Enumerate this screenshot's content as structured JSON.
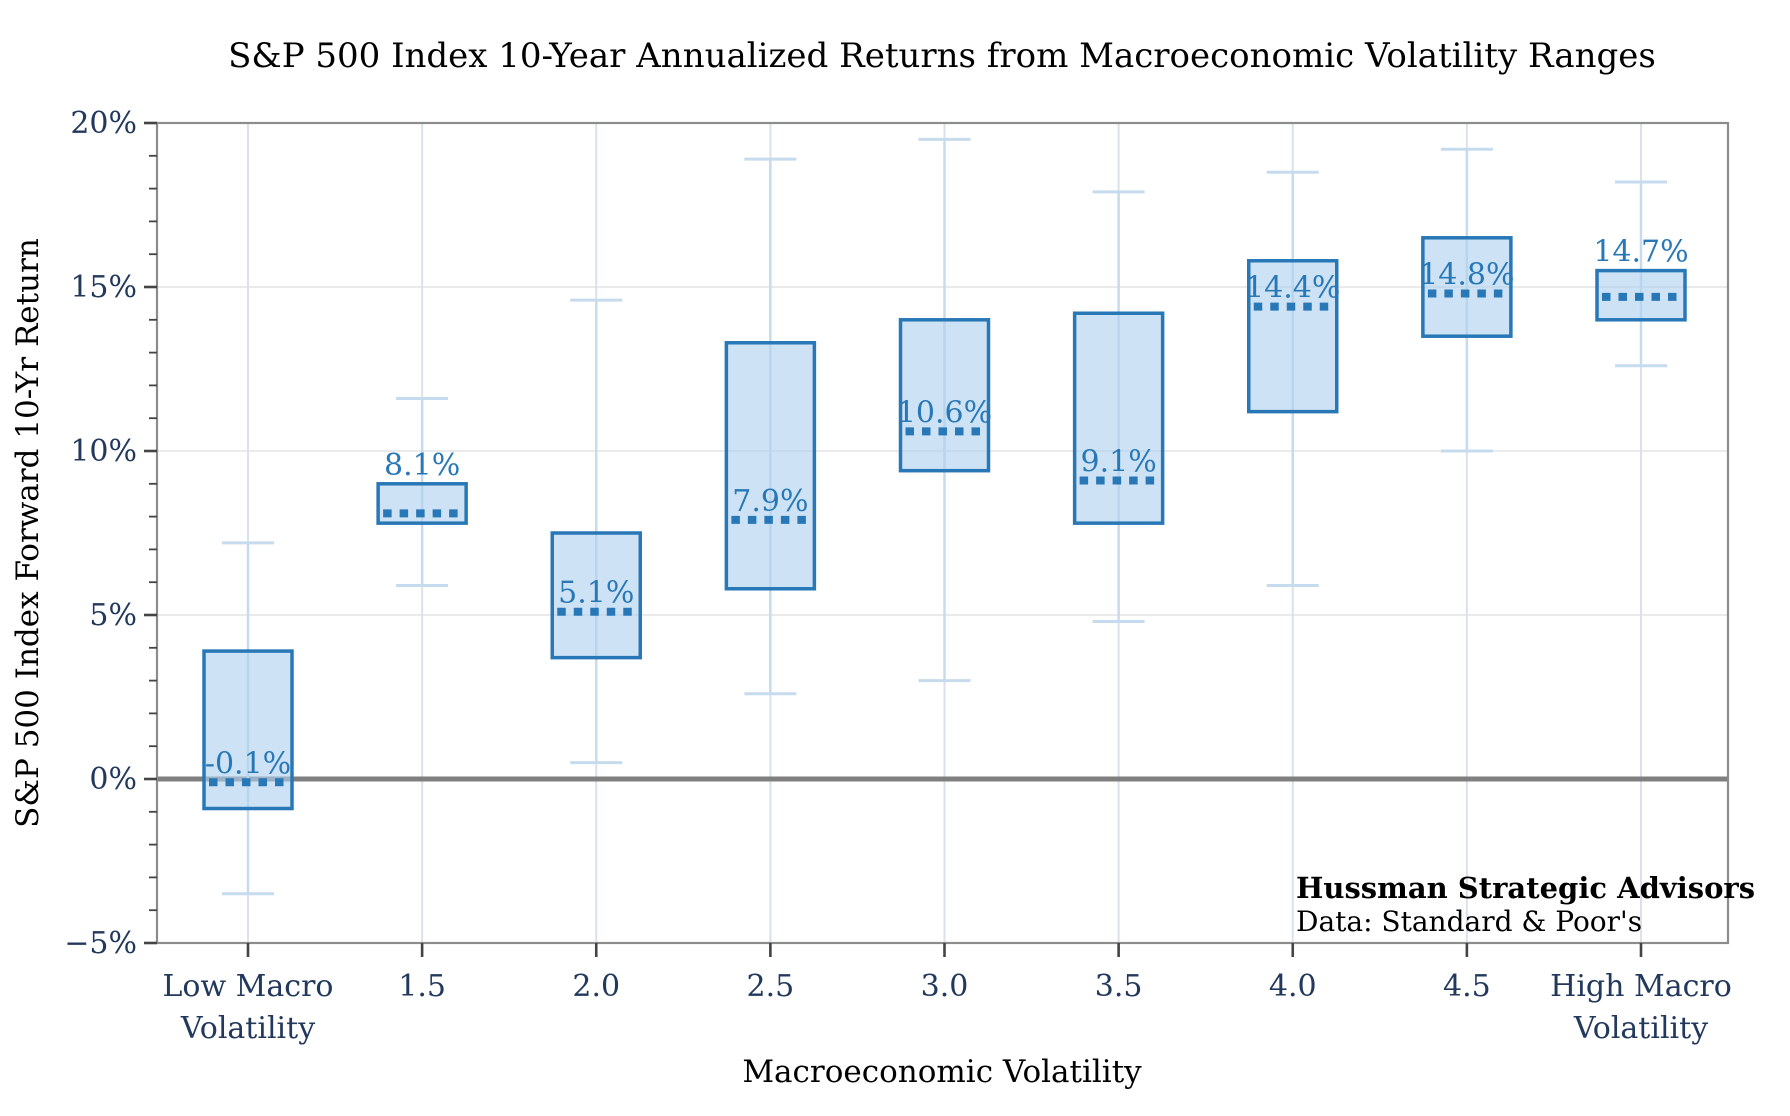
{
  "chart_data": {
    "type": "box",
    "title": "S&P 500 Index 10-Year Annualized Returns from Macroeconomic Volatility Ranges",
    "xlabel": "Macroeconomic Volatility",
    "ylabel": "S&P 500 Index Forward 10-Yr Return",
    "grid": true,
    "legend": null,
    "ylim": [
      -5,
      20
    ],
    "y_ticks": [
      {
        "value": 20,
        "label": "20%"
      },
      {
        "value": 15,
        "label": "15%"
      },
      {
        "value": 10,
        "label": "10%"
      },
      {
        "value": 5,
        "label": "5%"
      },
      {
        "value": 0,
        "label": "0%"
      },
      {
        "value": -5,
        "label": "−5%"
      }
    ],
    "minor_tick_step": 1,
    "zero_line": 0,
    "categories": [
      [
        "Low Macro",
        "Volatility"
      ],
      [
        "1.5"
      ],
      [
        "2.0"
      ],
      [
        "2.5"
      ],
      [
        "3.0"
      ],
      [
        "3.5"
      ],
      [
        "4.0"
      ],
      [
        "4.5"
      ],
      [
        "High Macro",
        "Volatility"
      ]
    ],
    "boxes": [
      {
        "category": "Low Macro Volatility",
        "whisker_low": -3.5,
        "q1": -0.9,
        "median": -0.1,
        "q3": 3.9,
        "whisker_high": 7.2,
        "label": "-0.1%"
      },
      {
        "category": "1.5",
        "whisker_low": 5.9,
        "q1": 7.8,
        "median": 8.1,
        "q3": 9.0,
        "whisker_high": 11.6,
        "label": "8.1%"
      },
      {
        "category": "2.0",
        "whisker_low": 0.5,
        "q1": 3.7,
        "median": 5.1,
        "q3": 7.5,
        "whisker_high": 14.6,
        "label": "5.1%"
      },
      {
        "category": "2.5",
        "whisker_low": 2.6,
        "q1": 5.8,
        "median": 7.9,
        "q3": 13.3,
        "whisker_high": 18.9,
        "label": "7.9%"
      },
      {
        "category": "3.0",
        "whisker_low": 3.0,
        "q1": 9.4,
        "median": 10.6,
        "q3": 14.0,
        "whisker_high": 19.5,
        "label": "10.6%"
      },
      {
        "category": "3.5",
        "whisker_low": 4.8,
        "q1": 7.8,
        "median": 9.1,
        "q3": 14.2,
        "whisker_high": 17.9,
        "label": "9.1%"
      },
      {
        "category": "4.0",
        "whisker_low": 5.9,
        "q1": 11.2,
        "median": 14.4,
        "q3": 15.8,
        "whisker_high": 18.5,
        "label": "14.4%"
      },
      {
        "category": "4.5",
        "whisker_low": 10.0,
        "q1": 13.5,
        "median": 14.8,
        "q3": 16.5,
        "whisker_high": 19.2,
        "label": "14.8%"
      },
      {
        "category": "High Macro Volatility",
        "whisker_low": 12.6,
        "q1": 14.0,
        "median": 14.7,
        "q3": 15.5,
        "whisker_high": 18.2,
        "label": "14.7%"
      }
    ]
  },
  "annotations": {
    "source_line1": "Hussman Strategic Advisors",
    "source_line2": "Data: Standard & Poor's"
  },
  "colors": {
    "box_fill": "#aed2ef",
    "box_stroke": "#2878b8",
    "whisker": "#c6dbee",
    "grid_h": "#e7e7e7",
    "grid_v": "#d9e2ec",
    "zero_line": "#7f7f7f",
    "frame": "#8c8c8c",
    "tick": "#444444",
    "text": "#22385c",
    "median_label": "#2878b8",
    "annotation_blue": "#2878b8",
    "annotation_black": "#111111"
  }
}
